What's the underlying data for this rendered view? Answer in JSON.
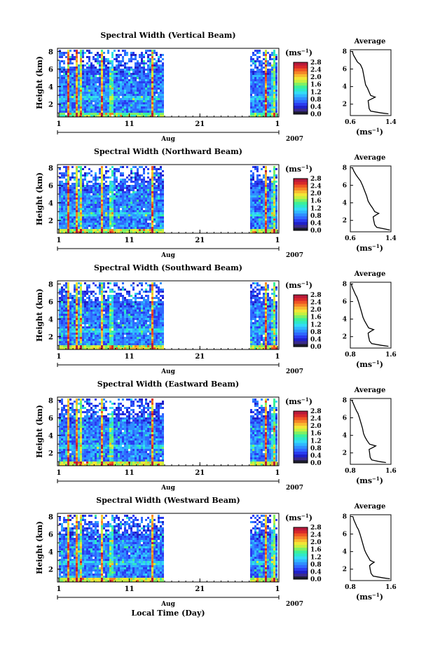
{
  "chart_data": {
    "type": "heatmap",
    "xlabel": "Local Time (Day)",
    "x_ticks": [
      "1",
      "11",
      "21",
      "1"
    ],
    "x_month": "Aug",
    "x_year": "2007",
    "xlim_days": [
      1,
      32
    ],
    "data_gap_days": [
      15.8,
      28.1
    ],
    "y_ticks": [
      2,
      4,
      6,
      8
    ],
    "ylabel": "Height (km)",
    "ylim_km": [
      0.7,
      8.2
    ],
    "colorbar": {
      "unit": "(ms",
      "unit_exp": "−1",
      "unit_close": ")",
      "ticks": [
        "0.0",
        "0.4",
        "0.8",
        "1.2",
        "1.6",
        "2.0",
        "2.4",
        "2.8"
      ],
      "range": [
        0,
        3.0
      ],
      "colors": [
        "#1c1c2c",
        "#3a2a8c",
        "#2020c8",
        "#2a3cf0",
        "#2f68ff",
        "#2f8fff",
        "#30b8ff",
        "#34dcf5",
        "#2ee8c8",
        "#3cf09a",
        "#7ef066",
        "#c6f040",
        "#f2e636",
        "#f8ba30",
        "#f58428",
        "#ee5424",
        "#d8282a",
        "#b81a3a"
      ]
    },
    "panels": [
      {
        "title": "Spectral Width (Vertical Beam)",
        "avg_title": "Average",
        "avg_ticks": [
          "0.6",
          "1.4"
        ],
        "avg_xlim": [
          0.6,
          1.4
        ],
        "avg_unit": "(ms",
        "avg_unit_exp": "−1",
        "avg_unit_close": ")",
        "avg_profile": {
          "height_km": [
            0.9,
            1.0,
            1.2,
            1.5,
            2.0,
            2.4,
            2.6,
            2.8,
            3.0,
            3.4,
            3.8,
            4.2,
            4.8,
            5.4,
            6.0,
            6.5,
            6.8,
            7.2,
            7.6,
            8.0
          ],
          "width": [
            1.35,
            1.2,
            1.0,
            0.97,
            0.96,
            0.95,
            1.02,
            1.09,
            1.0,
            0.97,
            0.94,
            0.9,
            0.88,
            0.86,
            0.84,
            0.8,
            0.74,
            0.7,
            0.66,
            0.64
          ]
        }
      },
      {
        "title": "Spectral Width (Northward Beam)",
        "avg_title": "Average",
        "avg_ticks": [
          "0.6",
          "1.4"
        ],
        "avg_xlim": [
          0.6,
          1.4
        ],
        "avg_unit": "(ms",
        "avg_unit_exp": "−1",
        "avg_unit_close": ")",
        "avg_profile": {
          "height_km": [
            0.9,
            1.0,
            1.2,
            1.5,
            2.0,
            2.4,
            2.6,
            2.8,
            3.0,
            3.4,
            3.8,
            4.2,
            4.8,
            5.4,
            6.0,
            6.5,
            6.8,
            7.2,
            7.6,
            8.0
          ],
          "width": [
            1.38,
            1.3,
            1.12,
            1.08,
            1.06,
            1.05,
            1.1,
            1.16,
            1.08,
            1.04,
            0.99,
            0.95,
            0.92,
            0.88,
            0.84,
            0.8,
            0.76,
            0.71,
            0.67,
            0.64
          ]
        }
      },
      {
        "title": "Spectral Width (Southward Beam)",
        "avg_title": "Average",
        "avg_ticks": [
          "0.8",
          "1.6"
        ],
        "avg_xlim": [
          0.8,
          1.6
        ],
        "avg_unit": "(ms",
        "avg_unit_exp": "−1",
        "avg_unit_close": ")",
        "avg_profile": {
          "height_km": [
            0.9,
            1.0,
            1.2,
            1.5,
            2.0,
            2.4,
            2.6,
            2.8,
            3.0,
            3.4,
            3.8,
            4.2,
            4.8,
            5.4,
            6.0,
            6.5,
            6.8,
            7.2,
            7.6,
            8.0
          ],
          "width": [
            1.55,
            1.42,
            1.22,
            1.18,
            1.16,
            1.15,
            1.2,
            1.26,
            1.16,
            1.12,
            1.08,
            1.05,
            1.02,
            0.99,
            0.96,
            0.93,
            0.9,
            0.87,
            0.84,
            0.82
          ]
        }
      },
      {
        "title": "Spectral Width (Eastward Beam)",
        "avg_title": "Average",
        "avg_ticks": [
          "0.8",
          "1.6"
        ],
        "avg_xlim": [
          0.8,
          1.6
        ],
        "avg_unit": "(ms",
        "avg_unit_exp": "−1",
        "avg_unit_close": ")",
        "avg_profile": {
          "height_km": [
            0.9,
            1.0,
            1.2,
            1.5,
            2.0,
            2.4,
            2.6,
            2.8,
            3.0,
            3.4,
            3.8,
            4.2,
            4.8,
            5.4,
            6.0,
            6.5,
            6.8,
            7.2,
            7.6,
            8.0
          ],
          "width": [
            1.5,
            1.38,
            1.22,
            1.19,
            1.18,
            1.17,
            1.24,
            1.3,
            1.18,
            1.13,
            1.09,
            1.06,
            1.04,
            1.01,
            0.98,
            0.95,
            0.92,
            0.89,
            0.86,
            0.83
          ]
        }
      },
      {
        "title": "Spectral Width (Westward Beam)",
        "avg_title": "Average",
        "avg_ticks": [
          "0.8",
          "1.6"
        ],
        "avg_xlim": [
          0.8,
          1.6
        ],
        "avg_unit": "(ms",
        "avg_unit_exp": "−1",
        "avg_unit_close": ")",
        "avg_profile": {
          "height_km": [
            0.9,
            1.0,
            1.2,
            1.5,
            2.0,
            2.4,
            2.6,
            2.8,
            3.0,
            3.4,
            3.8,
            4.2,
            4.8,
            5.4,
            6.0,
            6.5,
            6.8,
            7.2,
            7.6,
            8.0
          ],
          "width": [
            1.58,
            1.45,
            1.25,
            1.21,
            1.19,
            1.18,
            1.22,
            1.27,
            1.19,
            1.15,
            1.11,
            1.08,
            1.05,
            1.02,
            0.99,
            0.96,
            0.93,
            0.9,
            0.87,
            0.85
          ]
        }
      }
    ]
  }
}
